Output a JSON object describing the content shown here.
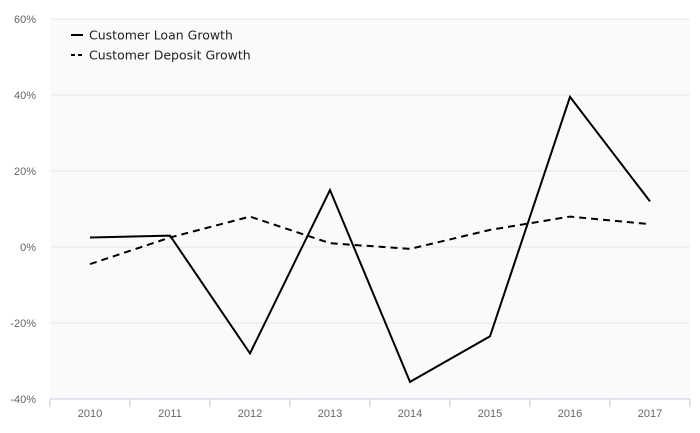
{
  "chart_data": {
    "type": "line",
    "title": "",
    "xlabel": "",
    "ylabel": "",
    "categories": [
      "2010",
      "2011",
      "2012",
      "2013",
      "2014",
      "2015",
      "2016",
      "2017"
    ],
    "series": [
      {
        "name": "Customer Loan Growth",
        "line_style": "solid",
        "color": "#000000",
        "values": [
          2.5,
          3.0,
          -28.0,
          15.0,
          -35.5,
          -23.5,
          39.5,
          12.0
        ]
      },
      {
        "name": "Customer Deposit Growth",
        "line_style": "dashed",
        "color": "#000000",
        "values": [
          -4.5,
          2.5,
          8.0,
          1.0,
          -0.5,
          4.5,
          8.0,
          6.0
        ]
      }
    ],
    "ylim": [
      -40,
      60
    ],
    "yticks": [
      -40,
      -20,
      0,
      20,
      40,
      60
    ],
    "ytick_labels": [
      "-40%",
      "-20%",
      "0%",
      "20%",
      "40%",
      "60%"
    ],
    "grid": true,
    "legend_position": "top-left"
  }
}
